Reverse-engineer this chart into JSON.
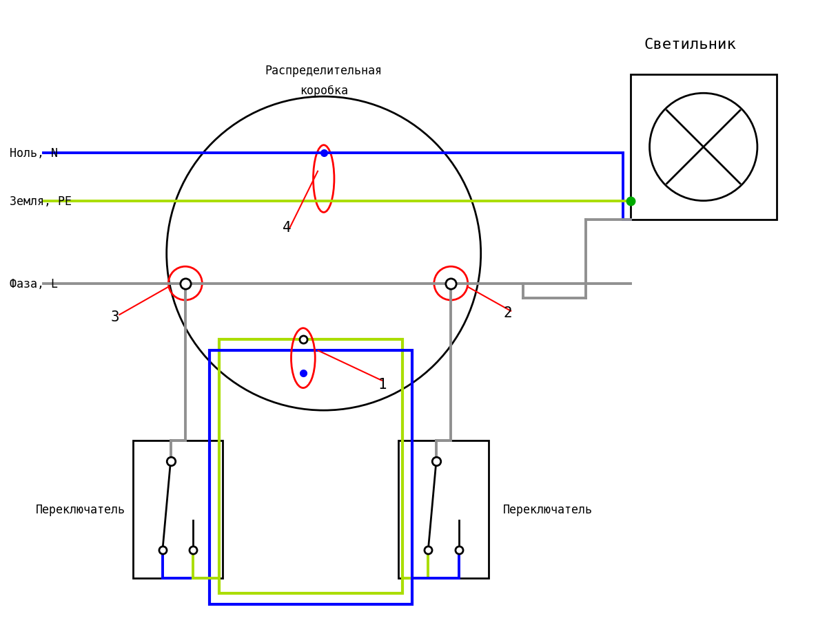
{
  "title": "Светильник",
  "box_label_left": "Переключатель",
  "box_label_right": "Переключатель",
  "circle_label_1": "Распределительная",
  "circle_label_2": "коробка",
  "wire_null": "Ноль, N",
  "wire_earth": "Земля, PE",
  "wire_phase": "Фаза, L",
  "color_blue": "#0000FF",
  "color_green": "#AADD00",
  "color_gray": "#909090",
  "color_black": "#000000",
  "color_red": "#FF0000",
  "color_dark_green": "#00AA00",
  "color_white": "#FFFFFF",
  "bg_color": "#FFFFFF",
  "ann_1": "1",
  "ann_2": "2",
  "ann_3": "3",
  "ann_4": "4"
}
